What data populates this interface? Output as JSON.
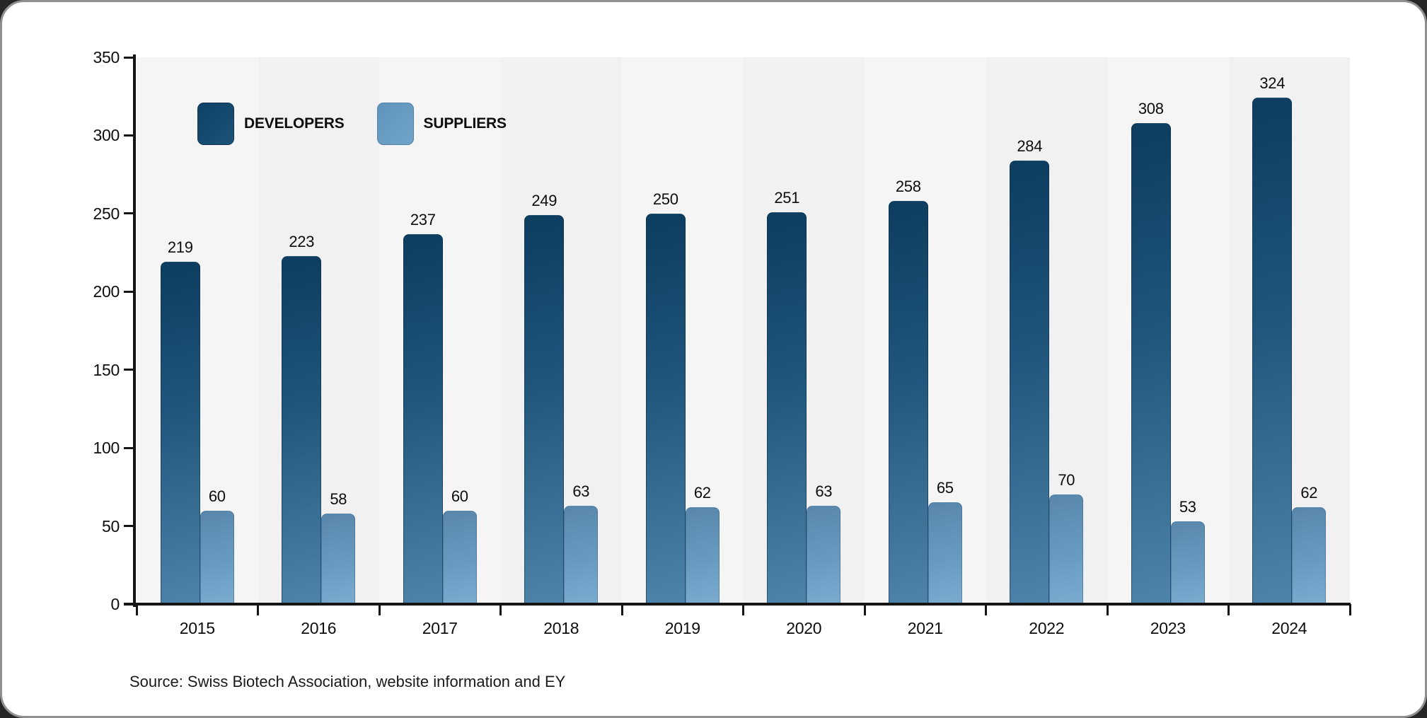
{
  "page": {
    "outer_background": "#262626",
    "card_background": "#ffffff",
    "card_border_color": "#909090"
  },
  "chart_data": {
    "type": "bar",
    "title": "",
    "xlabel": "",
    "ylabel": "",
    "categories": [
      "2015",
      "2016",
      "2017",
      "2018",
      "2019",
      "2020",
      "2021",
      "2022",
      "2023",
      "2024"
    ],
    "series": [
      {
        "name": "DEVELOPERS",
        "values": [
          219,
          223,
          237,
          249,
          250,
          251,
          258,
          284,
          308,
          324
        ],
        "color_top": "#0d3d5f",
        "color_bottom": "#4e84aa"
      },
      {
        "name": "SUPPLIERS",
        "values": [
          60,
          58,
          60,
          63,
          62,
          63,
          65,
          70,
          53,
          62
        ],
        "color_top": "#5987ab",
        "color_bottom": "#7babcf"
      }
    ],
    "ylim": [
      0,
      350
    ],
    "yticks": [
      0,
      50,
      100,
      150,
      200,
      250,
      300,
      350
    ],
    "grid": false,
    "legend_position": "top-left",
    "plot_background": "#f2f2f3",
    "axis_color": "#151515"
  },
  "source": {
    "text": "Source: Swiss Biotech Association, website information and EY"
  }
}
